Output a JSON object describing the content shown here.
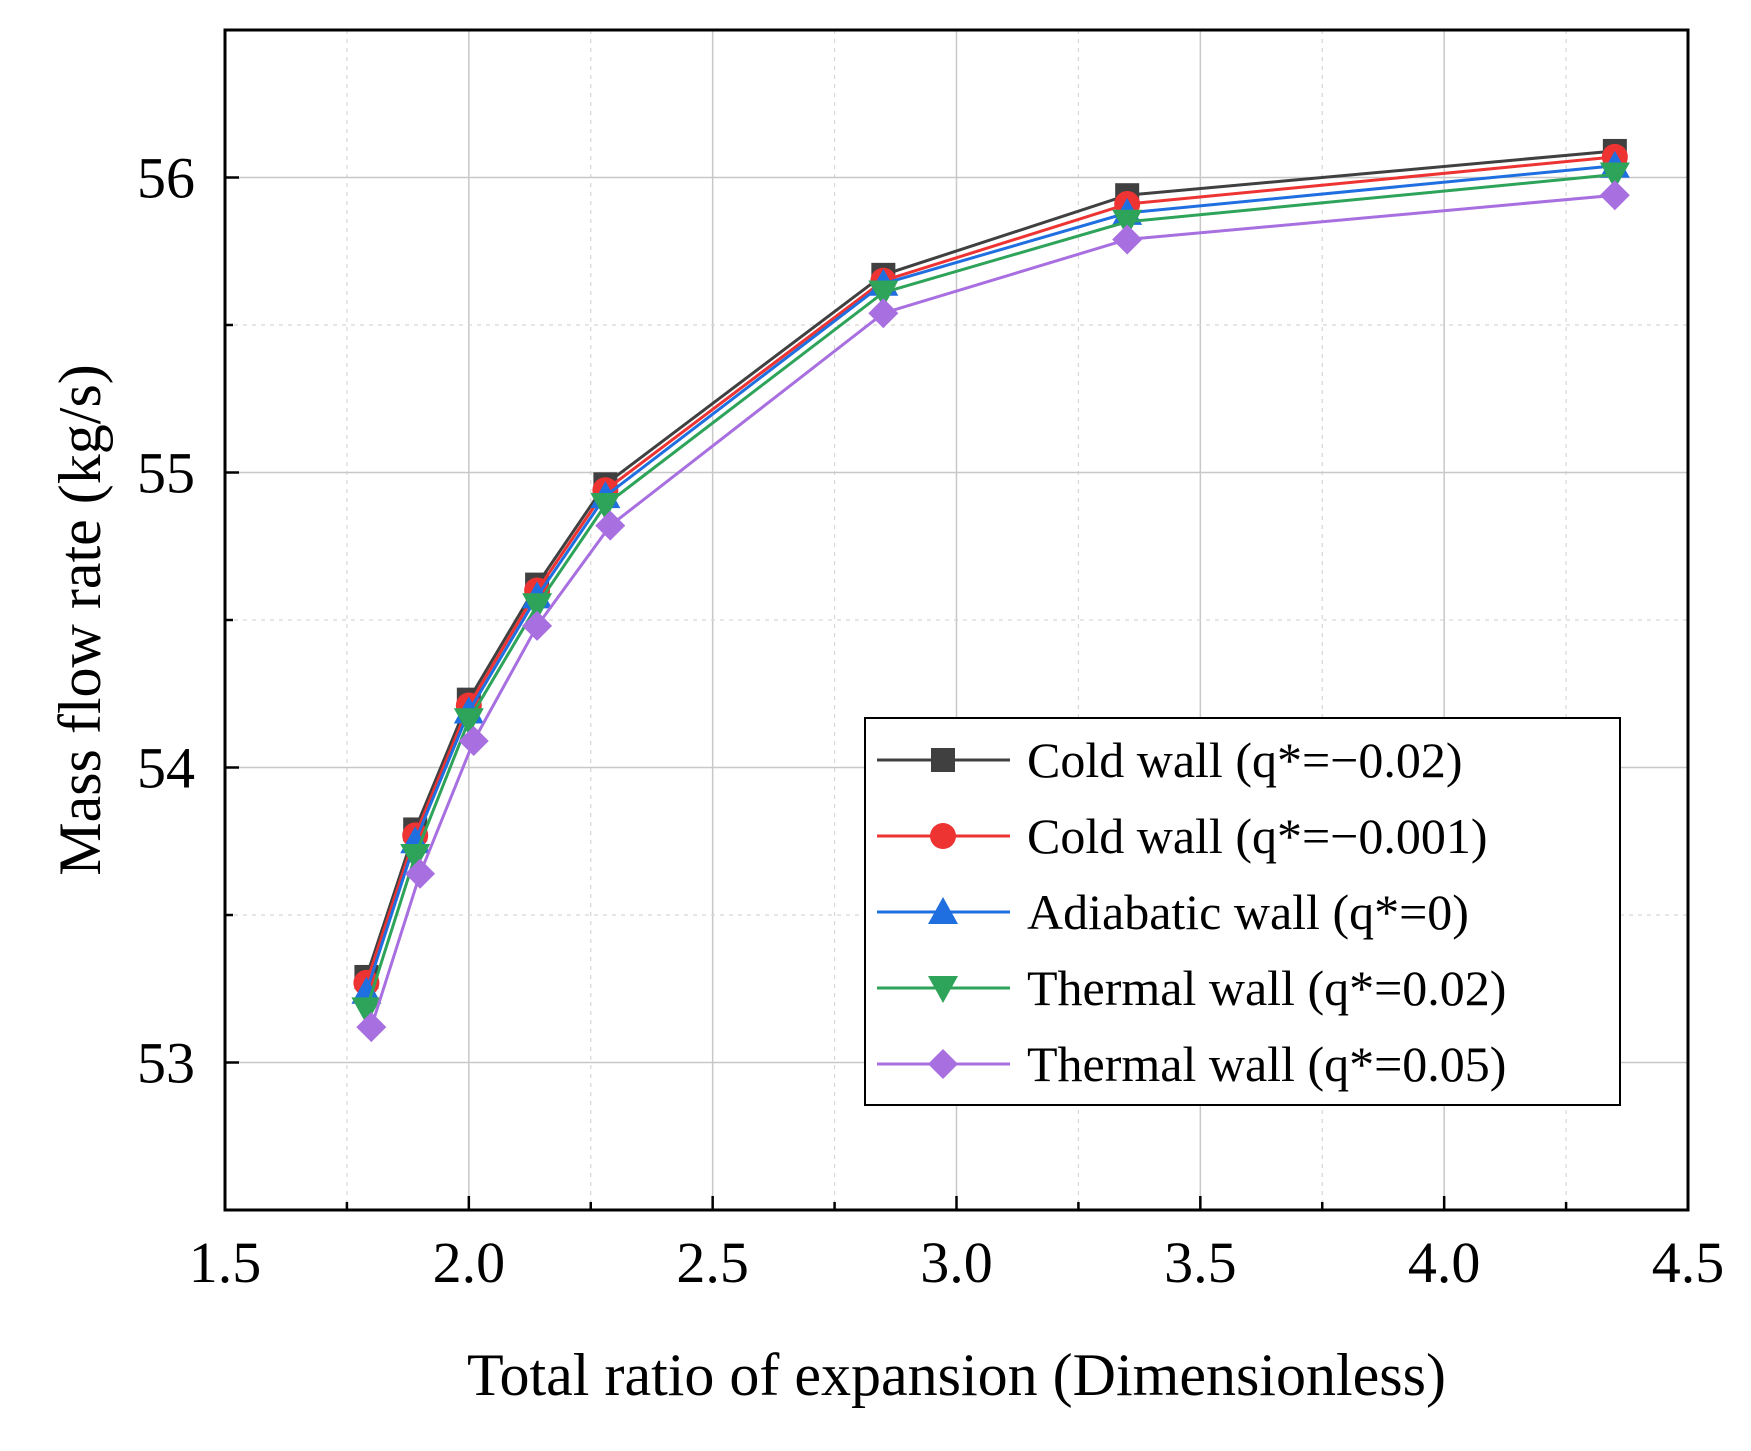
{
  "chart_data": {
    "type": "line",
    "title": "",
    "xlabel": "Total ratio of expansion (Dimensionless)",
    "ylabel": "Mass flow rate (kg/s)",
    "xlim": [
      1.5,
      4.5
    ],
    "ylim": [
      52.5,
      56.5
    ],
    "xticks": [
      1.5,
      2.0,
      2.5,
      3.0,
      3.5,
      4.0,
      4.5
    ],
    "xtick_labels": [
      "1.5",
      "2.0",
      "2.5",
      "3.0",
      "3.5",
      "4.0",
      "4.5"
    ],
    "yticks": [
      53,
      54,
      55,
      56
    ],
    "ytick_labels": [
      "53",
      "54",
      "55",
      "56"
    ],
    "grid": true,
    "legend_position": "lower-right",
    "series": [
      {
        "name": "Cold wall (q*=−0.02)",
        "color": "#404040",
        "marker": "square",
        "x": [
          1.79,
          1.89,
          2.0,
          2.14,
          2.28,
          2.85,
          3.35,
          4.35
        ],
        "y": [
          53.29,
          53.79,
          54.23,
          54.62,
          54.96,
          55.67,
          55.94,
          56.09
        ]
      },
      {
        "name": "Cold wall (q*=−0.001)",
        "color": "#ee3333",
        "marker": "circle",
        "x": [
          1.79,
          1.89,
          2.0,
          2.14,
          2.28,
          2.85,
          3.35,
          4.35
        ],
        "y": [
          53.27,
          53.77,
          54.21,
          54.6,
          54.94,
          55.65,
          55.91,
          56.07
        ]
      },
      {
        "name": "Adiabatic wall (q*=0)",
        "color": "#1f6fe0",
        "marker": "triangle-up",
        "x": [
          1.79,
          1.89,
          2.0,
          2.14,
          2.28,
          2.85,
          3.35,
          4.35
        ],
        "y": [
          53.24,
          53.75,
          54.19,
          54.58,
          54.92,
          55.64,
          55.88,
          56.04
        ]
      },
      {
        "name": "Thermal wall (q*=0.02)",
        "color": "#2ea35a",
        "marker": "triangle-down",
        "x": [
          1.79,
          1.89,
          2.0,
          2.14,
          2.28,
          2.85,
          3.35,
          4.35
        ],
        "y": [
          53.18,
          53.7,
          54.16,
          54.55,
          54.89,
          55.61,
          55.85,
          56.01
        ]
      },
      {
        "name": "Thermal wall (q*=0.05)",
        "color": "#a86fe0",
        "marker": "diamond",
        "x": [
          1.8,
          1.9,
          2.01,
          2.14,
          2.29,
          2.85,
          3.35,
          4.35
        ],
        "y": [
          53.12,
          53.64,
          54.09,
          54.48,
          54.82,
          55.54,
          55.79,
          55.94
        ]
      }
    ]
  }
}
